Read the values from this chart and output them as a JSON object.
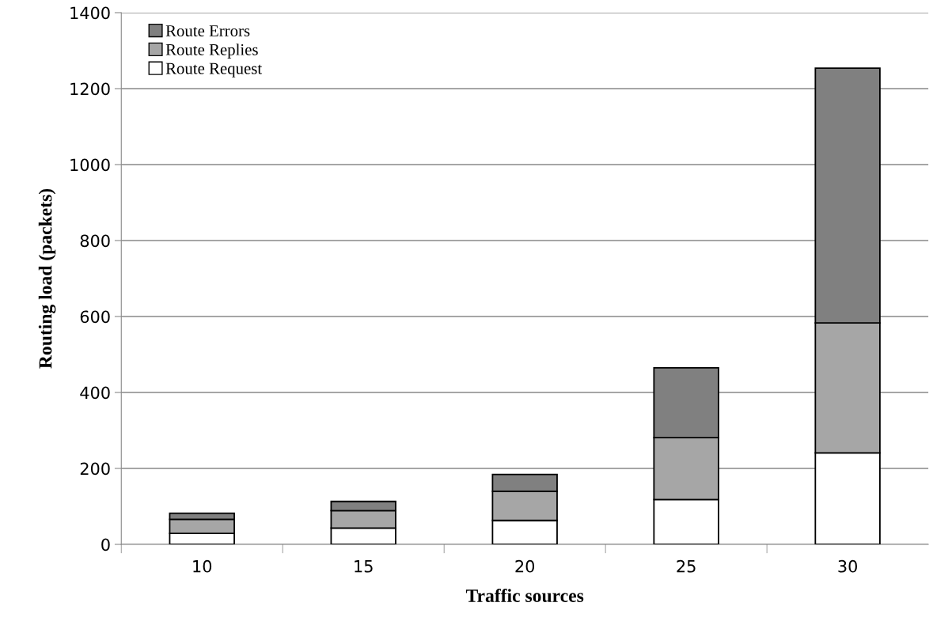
{
  "chart_data": {
    "type": "bar",
    "stacked": true,
    "xlabel": "Traffic sources",
    "ylabel": "Routing load (packets)",
    "categories": [
      "10",
      "15",
      "20",
      "25",
      "30"
    ],
    "series": [
      {
        "name": "Route Request",
        "color": "#ffffff",
        "values": [
          29,
          43,
          63,
          118,
          241
        ]
      },
      {
        "name": "Route Replies",
        "color": "#a6a6a6",
        "values": [
          37,
          46,
          77,
          163,
          342
        ]
      },
      {
        "name": "Route Errors",
        "color": "#808080",
        "values": [
          16,
          24,
          44,
          184,
          671
        ]
      }
    ],
    "ylim": [
      0,
      1400
    ],
    "yticks": [
      0,
      200,
      400,
      600,
      800,
      1000,
      1200,
      1400
    ],
    "grid": "y",
    "legend": "top left"
  }
}
